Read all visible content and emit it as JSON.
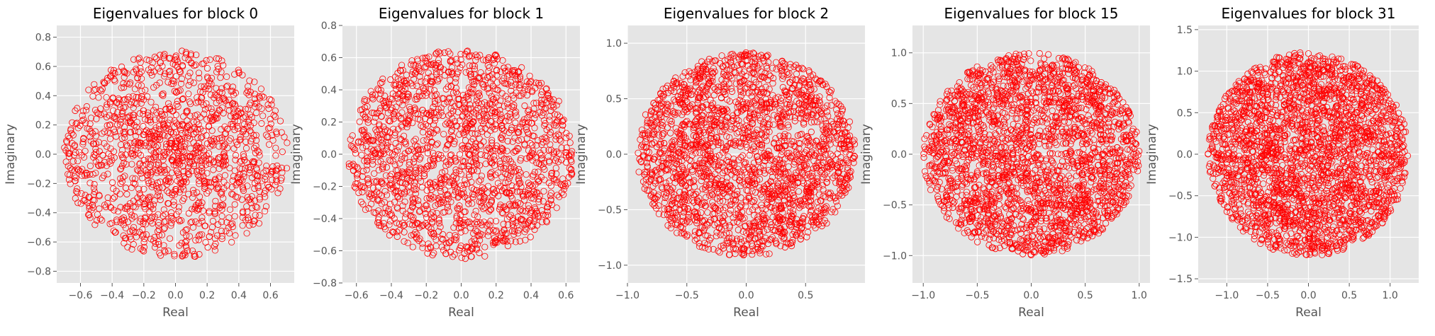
{
  "chart_data": [
    {
      "type": "scatter",
      "title": "Eigenvalues for block 0",
      "xlabel": "Real",
      "ylabel": "Imaginary",
      "xlim": [
        -0.75,
        0.75
      ],
      "ylim": [
        -0.88,
        0.88
      ],
      "xticks": [
        -0.6,
        -0.4,
        -0.2,
        0.0,
        0.2,
        0.4,
        0.6
      ],
      "yticks": [
        -0.8,
        -0.6,
        -0.4,
        -0.2,
        0.0,
        0.2,
        0.4,
        0.6,
        0.8
      ],
      "xtick_labels": [
        "−0.6",
        "−0.4",
        "−0.2",
        "0.0",
        "0.2",
        "0.4",
        "0.6"
      ],
      "ytick_labels": [
        "−0.8",
        "−0.6",
        "−0.4",
        "−0.2",
        "0.0",
        "0.2",
        "0.4",
        "0.6",
        "0.8"
      ],
      "distribution": "disk centered at origin, denser toward center",
      "radius": 0.71,
      "color": "#FF0000",
      "marker": "open-circle",
      "grid": true
    },
    {
      "type": "scatter",
      "title": "Eigenvalues for block 1",
      "xlabel": "Real",
      "ylabel": "Imaginary",
      "xlim": [
        -0.68,
        0.68
      ],
      "ylim": [
        -0.8,
        0.8
      ],
      "xticks": [
        -0.6,
        -0.4,
        -0.2,
        0.0,
        0.2,
        0.4,
        0.6
      ],
      "yticks": [
        -0.8,
        -0.6,
        -0.4,
        -0.2,
        0.0,
        0.2,
        0.4,
        0.6,
        0.8
      ],
      "xtick_labels": [
        "−0.6",
        "−0.4",
        "−0.2",
        "0.0",
        "0.2",
        "0.4",
        "0.6"
      ],
      "ytick_labels": [
        "−0.8",
        "−0.6",
        "−0.4",
        "−0.2",
        "0.0",
        "0.2",
        "0.4",
        "0.6",
        "0.8"
      ],
      "distribution": "disk centered at origin",
      "radius": 0.65,
      "color": "#FF0000",
      "marker": "open-circle",
      "grid": true
    },
    {
      "type": "scatter",
      "title": "Eigenvalues for block 2",
      "xlabel": "Real",
      "ylabel": "Imaginary",
      "xlim": [
        -1.0,
        1.0
      ],
      "ylim": [
        -1.16,
        1.16
      ],
      "xticks": [
        -1.0,
        -0.5,
        0.0,
        0.5
      ],
      "yticks": [
        -1.0,
        -0.5,
        0.0,
        0.5,
        1.0
      ],
      "xtick_labels": [
        "−1.0",
        "−0.5",
        "0.0",
        "0.5"
      ],
      "ytick_labels": [
        "−1.0",
        "−0.5",
        "0.0",
        "0.5",
        "1.0"
      ],
      "distribution": "uniform disk centered at origin",
      "radius": 0.92,
      "color": "#FF0000",
      "marker": "open-circle",
      "grid": true
    },
    {
      "type": "scatter",
      "title": "Eigenvalues for block 15",
      "xlabel": "Real",
      "ylabel": "Imaginary",
      "xlim": [
        -1.1,
        1.1
      ],
      "ylim": [
        -1.27,
        1.27
      ],
      "xticks": [
        -1.0,
        -0.5,
        0.0,
        0.5,
        1.0
      ],
      "yticks": [
        -1.0,
        -0.5,
        0.0,
        0.5,
        1.0
      ],
      "xtick_labels": [
        "−1.0",
        "−0.5",
        "0.0",
        "0.5",
        "1.0"
      ],
      "ytick_labels": [
        "−1.0",
        "−0.5",
        "0.0",
        "0.5",
        "1.0"
      ],
      "distribution": "uniform disk centered at origin",
      "radius": 1.0,
      "color": "#FF0000",
      "marker": "open-circle",
      "grid": true
    },
    {
      "type": "scatter",
      "title": "Eigenvalues for block 31",
      "xlabel": "Real",
      "ylabel": "Imaginary",
      "xlim": [
        -1.35,
        1.35
      ],
      "ylim": [
        -1.55,
        1.55
      ],
      "xticks": [
        -1.0,
        -0.5,
        0.0,
        0.5,
        1.0
      ],
      "yticks": [
        -1.5,
        -1.0,
        -0.5,
        0.0,
        0.5,
        1.0,
        1.5
      ],
      "xtick_labels": [
        "−1.0",
        "−0.5",
        "0.0",
        "0.5",
        "1.0"
      ],
      "ytick_labels": [
        "−1.5",
        "−1.0",
        "−0.5",
        "0.0",
        "0.5",
        "1.0",
        "1.5"
      ],
      "distribution": "uniform disk centered at origin",
      "radius": 1.23,
      "color": "#FF0000",
      "marker": "open-circle",
      "grid": true
    }
  ]
}
